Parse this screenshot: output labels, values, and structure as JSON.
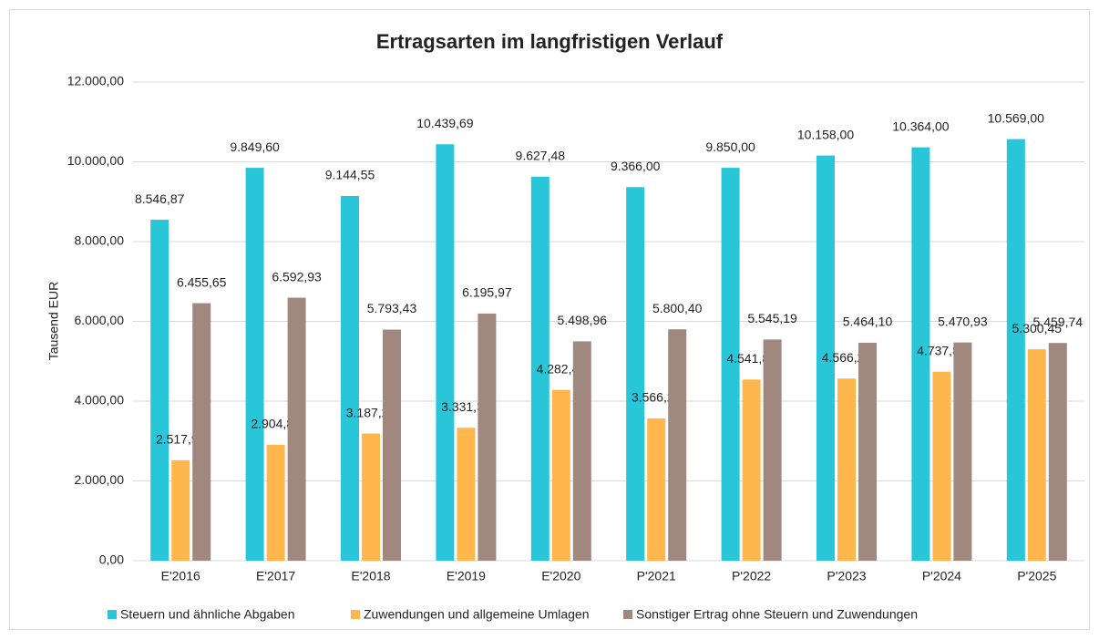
{
  "chart_data": {
    "type": "bar",
    "title": "Ertragsarten im langfristigen Verlauf",
    "y_label": "Tausend EUR",
    "categories": [
      "E'2016",
      "E'2017",
      "E'2018",
      "E'2019",
      "E'2020",
      "P'2021",
      "P'2022",
      "P'2023",
      "P'2024",
      "P'2025"
    ],
    "series": [
      {
        "name": "Steuern und ähnliche Abgaben",
        "color": "#29c5d9",
        "values": [
          8546.87,
          9849.6,
          9144.55,
          10439.69,
          9627.48,
          9366.0,
          9850.0,
          10158.0,
          10364.0,
          10569.0
        ],
        "value_labels": [
          "8.546,87",
          "9.849,60",
          "9.144,55",
          "10.439,69",
          "9.627,48",
          "9.366,00",
          "9.850,00",
          "10.158,00",
          "10.364,00",
          "10.569,00"
        ]
      },
      {
        "name": "Zuwendungen und allgemeine Umlagen",
        "color": "#ffb74d",
        "values": [
          2517.98,
          2904.88,
          3187.24,
          3331.35,
          4282.44,
          3566.2,
          4541.85,
          4566.25,
          4737.85,
          5300.45
        ],
        "value_labels": [
          "2.517,98",
          "2.904,88",
          "3.187,24",
          "3.331,35",
          "4.282,44",
          "3.566,20",
          "4.541,85",
          "4.566,25",
          "4.737,85",
          "5.300,45"
        ]
      },
      {
        "name": "Sonstiger Ertrag ohne Steuern und Zuwendungen",
        "color": "#a1887f",
        "values": [
          6455.65,
          6592.93,
          5793.43,
          6195.97,
          5498.96,
          5800.4,
          5545.19,
          5464.1,
          5470.93,
          5459.74
        ],
        "value_labels": [
          "6.455,65",
          "6.592,93",
          "5.793,43",
          "6.195,97",
          "5.498,96",
          "5.800,40",
          "5.545,19",
          "5.464,10",
          "5.470,93",
          "5.459,74"
        ]
      }
    ],
    "ylim": [
      0,
      12000
    ],
    "yticks": [
      {
        "value": 0,
        "label": "0,00"
      },
      {
        "value": 2000,
        "label": "2.000,00"
      },
      {
        "value": 4000,
        "label": "4.000,00"
      },
      {
        "value": 6000,
        "label": "6.000,00"
      },
      {
        "value": 8000,
        "label": "8.000,00"
      },
      {
        "value": 10000,
        "label": "10.000,00"
      },
      {
        "value": 12000,
        "label": "12.000,00"
      }
    ],
    "grid": true,
    "legend": "bottom"
  }
}
